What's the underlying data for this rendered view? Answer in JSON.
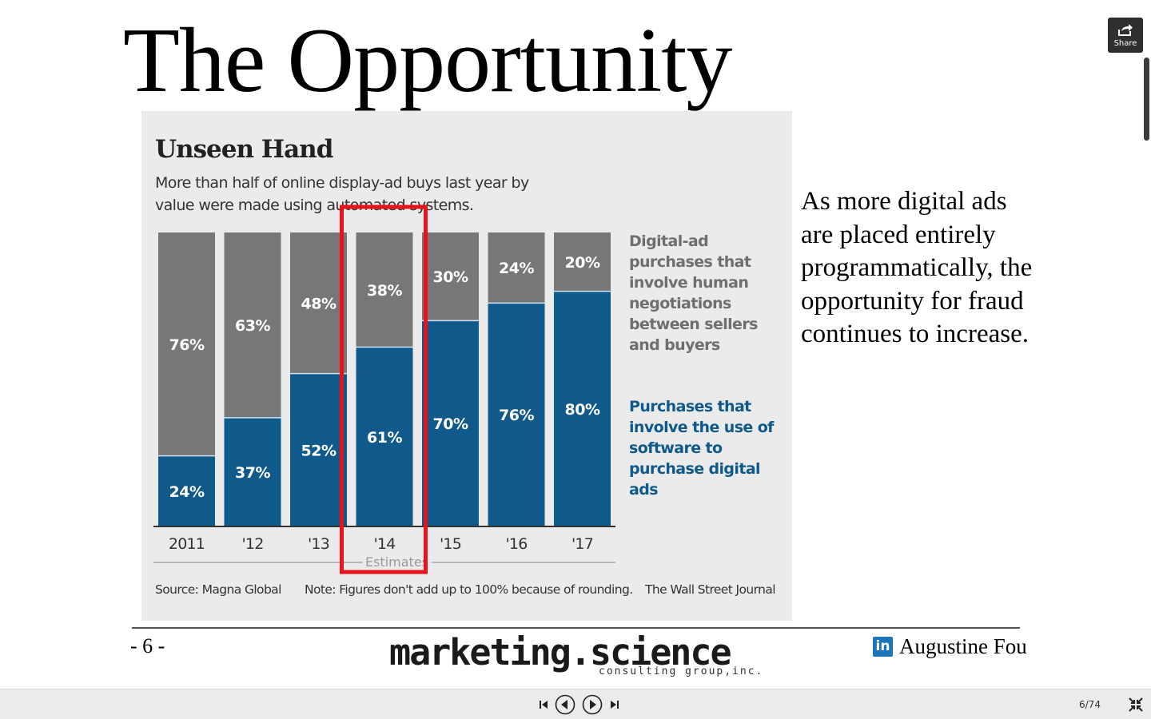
{
  "slide": {
    "title": "The Opportunity",
    "body_text": "As more digital ads are placed entirely programmatically, the opportunity for fraud continues to increase.",
    "page_number": "- 6 -",
    "logo_main": "marketing.science",
    "logo_sub": "consulting group,inc.",
    "author": "Augustine Fou",
    "linkedin_glyph": "in"
  },
  "infographic": {
    "title": "Unseen Hand",
    "subtitle": "More than half of online display-ad buys last year by value were made using automated systems.",
    "legend_gray": "Digital-ad purchases that involve human negotiations between sellers and buyers",
    "legend_blue": "Purchases that involve the use of software to purchase digital ads",
    "source": "Source: Magna Global",
    "note": "Note: Figures don't add up to 100% because of rounding.",
    "publisher": "The Wall Street Journal"
  },
  "chart_data": {
    "type": "bar",
    "stacked": true,
    "categories": [
      "2011",
      "'12",
      "'13",
      "'14",
      "'15",
      "'16",
      "'17"
    ],
    "series": [
      {
        "name": "Purchases that involve the use of software to purchase digital ads",
        "values": [
          24,
          37,
          52,
          61,
          70,
          76,
          80
        ],
        "labels": [
          "24%",
          "37%",
          "52%",
          "61%",
          "70%",
          "76%",
          "80%"
        ],
        "color": "#105a8b"
      },
      {
        "name": "Digital-ad purchases that involve human negotiations between sellers and buyers",
        "values": [
          76,
          63,
          48,
          38,
          30,
          24,
          20
        ],
        "labels": [
          "76%",
          "63%",
          "48%",
          "38%",
          "30%",
          "24%",
          "20%"
        ],
        "color": "#777777"
      }
    ],
    "estimates_label": "Estimates",
    "estimates_from_index": 3,
    "highlight_index": 3,
    "highlight_color": "#e8141b",
    "ylim": [
      0,
      100
    ]
  },
  "ui": {
    "share_label": "Share",
    "slide_counter": "6/74",
    "icons": {
      "share": "share-icon",
      "first": "skip-to-start-icon",
      "prev": "previous-icon",
      "play": "play-icon",
      "last": "skip-to-end-icon",
      "fullscreen": "exit-fullscreen-icon"
    }
  }
}
